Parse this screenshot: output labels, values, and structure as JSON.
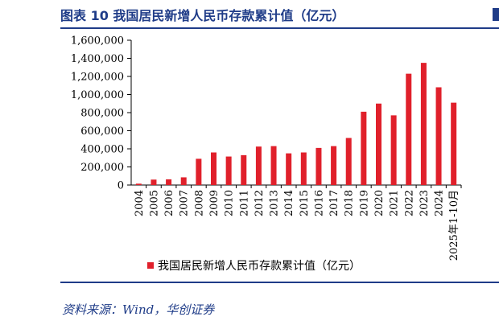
{
  "figure": {
    "title": "图表 10   我国居民新增人民币存款累计值（亿元）",
    "source": "资料来源：Wind，华创证券"
  },
  "chart_data": {
    "type": "bar",
    "title": "",
    "xlabel": "",
    "ylabel": "",
    "categories": [
      "2004",
      "2005",
      "2006",
      "2007",
      "2008",
      "2009",
      "2010",
      "2011",
      "2012",
      "2013",
      "2014",
      "2015",
      "2016",
      "2017",
      "2018",
      "2019",
      "2020",
      "2021",
      "2022",
      "2023",
      "2024",
      "2025年1-10月"
    ],
    "series": [
      {
        "name": "我国居民新增人民币存款累计值（亿元）",
        "color": "#e0202b",
        "values": [
          15000,
          60000,
          63000,
          85000,
          290000,
          360000,
          315000,
          330000,
          425000,
          430000,
          350000,
          360000,
          410000,
          430000,
          520000,
          810000,
          900000,
          770000,
          1230000,
          1350000,
          1080000,
          910000
        ]
      }
    ],
    "ylim": [
      0,
      1600000
    ],
    "yticks": [
      0,
      200000,
      400000,
      600000,
      800000,
      1000000,
      1200000,
      1400000,
      1600000
    ],
    "ytick_labels": [
      "0",
      "200,000",
      "400,000",
      "600,000",
      "800,000",
      "1,000,000",
      "1,200,000",
      "1,400,000",
      "1,600,000"
    ],
    "grid": false,
    "legend": {
      "position": "bottom",
      "label": "我国居民新增人民币存款累计值（亿元）"
    }
  }
}
